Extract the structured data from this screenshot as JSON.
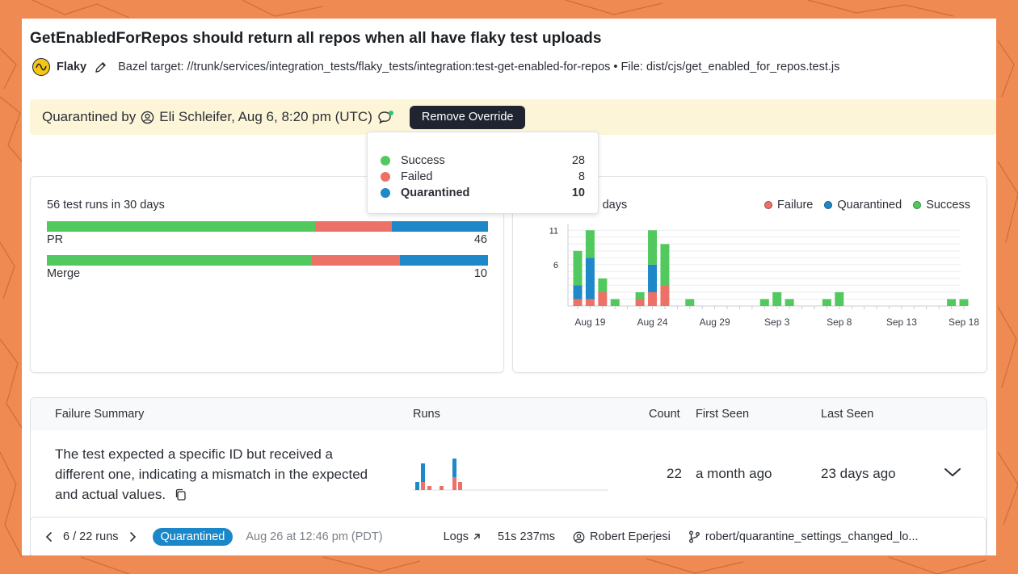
{
  "header": {
    "title": "GetEnabledForRepos should return all repos when all have flaky test uploads",
    "status_label": "Flaky",
    "bazel_target": "Bazel target: //trunk/services/integration_tests/flaky_tests/integration:test-get-enabled-for-repos • File: dist/cjs/get_enabled_for_repos.test.js"
  },
  "quarantine": {
    "prefix": "Quarantined by",
    "by": "Eli Schleifer, Aug 6, 8:20 pm (UTC)",
    "remove_label": "Remove Override"
  },
  "test_runs": {
    "heading": "56 test runs in 30 days",
    "rows": [
      {
        "label": "PR",
        "count": "46",
        "success_frac": 0.608,
        "failed_frac": 0.174,
        "quarantined_frac": 0.218
      },
      {
        "label": "Merge",
        "count": "10",
        "success_frac": 0.6,
        "failed_frac": 0.2,
        "quarantined_frac": 0.2
      }
    ]
  },
  "tooltip": {
    "rows": [
      {
        "label": "Success",
        "value": "28"
      },
      {
        "label": "Failed",
        "value": "8"
      },
      {
        "label": "Quarantined",
        "value": "10"
      }
    ]
  },
  "colors": {
    "success": "#52c95e",
    "failed": "#ec7268",
    "quarantined": "#1f88c9",
    "flaky": "#f5c518"
  },
  "chart_data": {
    "type": "bar",
    "title": "…ions in 30 days",
    "stacked": true,
    "x": [
      "Aug 18",
      "Aug 19",
      "Aug 20",
      "Aug 21",
      "Aug 22",
      "Aug 23",
      "Aug 24",
      "Aug 25",
      "Aug 26",
      "Aug 27",
      "Aug 28",
      "Aug 29",
      "Aug 30",
      "Aug 31",
      "Sep 1",
      "Sep 2",
      "Sep 3",
      "Sep 4",
      "Sep 5",
      "Sep 6",
      "Sep 7",
      "Sep 8",
      "Sep 9",
      "Sep 10",
      "Sep 11",
      "Sep 12",
      "Sep 13",
      "Sep 14",
      "Sep 15",
      "Sep 16",
      "Sep 17",
      "Sep 18"
    ],
    "tick_labels": [
      "Aug 19",
      "Aug 24",
      "Aug 29",
      "Sep 3",
      "Sep 8",
      "Sep 13",
      "Sep 18"
    ],
    "y_ticks": [
      "11",
      "6"
    ],
    "ylim": [
      0,
      12
    ],
    "series": [
      {
        "name": "Failure",
        "values": [
          1,
          1,
          2,
          0,
          0,
          1,
          2,
          3,
          0,
          0,
          0,
          0,
          0,
          0,
          0,
          0,
          0,
          0,
          0,
          0,
          0,
          0,
          0,
          0,
          0,
          0,
          0,
          0,
          0,
          0,
          0,
          0
        ]
      },
      {
        "name": "Quarantined",
        "values": [
          2,
          6,
          0,
          0,
          0,
          0,
          4,
          0,
          0,
          0,
          0,
          0,
          0,
          0,
          0,
          0,
          0,
          0,
          0,
          0,
          0,
          0,
          0,
          0,
          0,
          0,
          0,
          0,
          0,
          0,
          0,
          0
        ]
      },
      {
        "name": "Success",
        "values": [
          5,
          4,
          2,
          1,
          0,
          1,
          5,
          6,
          0,
          1,
          0,
          0,
          0,
          0,
          0,
          1,
          2,
          1,
          0,
          0,
          1,
          2,
          0,
          0,
          0,
          0,
          0,
          0,
          0,
          0,
          1,
          1
        ]
      }
    ],
    "legend_position": "top-right",
    "grid": true
  },
  "failure_summary": {
    "headers": {
      "summary": "Failure Summary",
      "runs": "Runs",
      "count": "Count",
      "first_seen": "First Seen",
      "last_seen": "Last Seen"
    },
    "row": {
      "summary": "The test expected a specific ID but received a different one, indicating a mismatch in the expected and actual values.",
      "count": "22",
      "first_seen": "a month ago",
      "last_seen": "23 days ago"
    }
  },
  "run_nav": {
    "position": "6 / 22 runs",
    "status": "Quarantined",
    "timestamp": "Aug 26 at 12:46 pm (PDT)",
    "logs": "Logs",
    "duration": "51s 237ms",
    "author": "Robert Eperjesi",
    "branch": "robert/quarantine_settings_changed_lo..."
  }
}
